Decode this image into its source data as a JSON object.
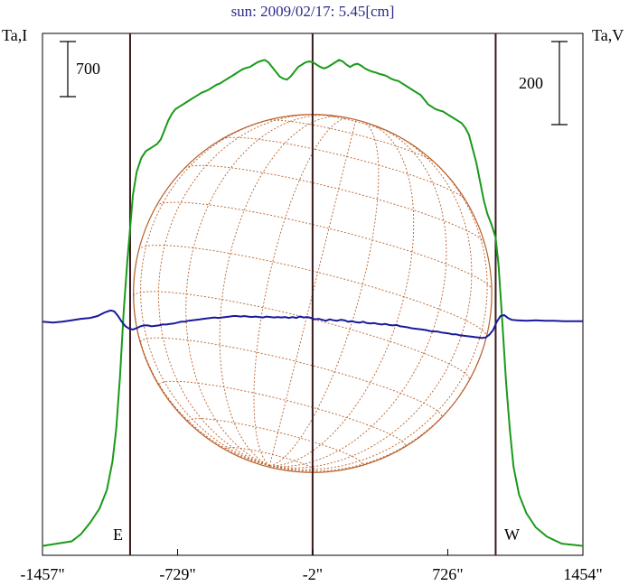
{
  "chart_data": {
    "type": "line",
    "title": "sun: 2009/02/17: 5.45[cm]",
    "left_axis_label": "Ta,I",
    "right_axis_label": "Ta,V",
    "left_scale_bar_label": "700",
    "right_scale_bar_label": "200",
    "east_label": "E",
    "west_label": "W",
    "x_tick_labels": [
      "-1457\"",
      "-729\"",
      "-2\"",
      "726\"",
      "1454\""
    ],
    "x_ticks": [
      -1457,
      -729,
      -2,
      726,
      1454
    ],
    "xlim": [
      -1457,
      1454
    ],
    "solar_limbs": [
      -985,
      984
    ],
    "center_x": -2,
    "disk": {
      "center_x": -2,
      "radius": 965
    },
    "grid": false,
    "series": [
      {
        "color": "#1a9a1a",
        "points": [
          [
            -1457,
            0.02
          ],
          [
            -1380,
            0.025
          ],
          [
            -1300,
            0.03
          ],
          [
            -1250,
            0.045
          ],
          [
            -1200,
            0.07
          ],
          [
            -1150,
            0.1
          ],
          [
            -1110,
            0.14
          ],
          [
            -1080,
            0.2
          ],
          [
            -1060,
            0.27
          ],
          [
            -1040,
            0.38
          ],
          [
            -1020,
            0.52
          ],
          [
            -1000,
            0.63
          ],
          [
            -985,
            0.7
          ],
          [
            -970,
            0.77
          ],
          [
            -950,
            0.82
          ],
          [
            -925,
            0.85
          ],
          [
            -900,
            0.865
          ],
          [
            -880,
            0.87
          ],
          [
            -860,
            0.875
          ],
          [
            -840,
            0.88
          ],
          [
            -820,
            0.89
          ],
          [
            -800,
            0.91
          ],
          [
            -780,
            0.93
          ],
          [
            -760,
            0.945
          ],
          [
            -740,
            0.955
          ],
          [
            -720,
            0.96
          ],
          [
            -700,
            0.965
          ],
          [
            -680,
            0.97
          ],
          [
            -660,
            0.975
          ],
          [
            -640,
            0.98
          ],
          [
            -620,
            0.985
          ],
          [
            -600,
            0.99
          ],
          [
            -580,
            0.993
          ],
          [
            -560,
            0.997
          ],
          [
            -540,
            1.002
          ],
          [
            -520,
            1.007
          ],
          [
            -500,
            1.01
          ],
          [
            -480,
            1.015
          ],
          [
            -460,
            1.02
          ],
          [
            -440,
            1.025
          ],
          [
            -420,
            1.03
          ],
          [
            -400,
            1.035
          ],
          [
            -380,
            1.04
          ],
          [
            -360,
            1.043
          ],
          [
            -340,
            1.045
          ],
          [
            -320,
            1.05
          ],
          [
            -300,
            1.055
          ],
          [
            -280,
            1.058
          ],
          [
            -260,
            1.06
          ],
          [
            -240,
            1.055
          ],
          [
            -220,
            1.045
          ],
          [
            -200,
            1.035
          ],
          [
            -180,
            1.025
          ],
          [
            -160,
            1.02
          ],
          [
            -140,
            1.018
          ],
          [
            -120,
            1.025
          ],
          [
            -100,
            1.035
          ],
          [
            -80,
            1.045
          ],
          [
            -60,
            1.05
          ],
          [
            -40,
            1.055
          ],
          [
            -20,
            1.057
          ],
          [
            0,
            1.055
          ],
          [
            20,
            1.05
          ],
          [
            40,
            1.045
          ],
          [
            60,
            1.042
          ],
          [
            80,
            1.045
          ],
          [
            100,
            1.05
          ],
          [
            120,
            1.055
          ],
          [
            140,
            1.06
          ],
          [
            160,
            1.057
          ],
          [
            180,
            1.05
          ],
          [
            200,
            1.045
          ],
          [
            220,
            1.05
          ],
          [
            240,
            1.052
          ],
          [
            260,
            1.048
          ],
          [
            280,
            1.042
          ],
          [
            300,
            1.038
          ],
          [
            320,
            1.035
          ],
          [
            340,
            1.033
          ],
          [
            360,
            1.03
          ],
          [
            380,
            1.028
          ],
          [
            400,
            1.025
          ],
          [
            420,
            1.02
          ],
          [
            440,
            1.017
          ],
          [
            460,
            1.015
          ],
          [
            480,
            1.01
          ],
          [
            500,
            1.005
          ],
          [
            520,
            1.0
          ],
          [
            540,
            0.995
          ],
          [
            560,
            0.99
          ],
          [
            580,
            0.985
          ],
          [
            600,
            0.975
          ],
          [
            620,
            0.965
          ],
          [
            640,
            0.96
          ],
          [
            660,
            0.955
          ],
          [
            680,
            0.952
          ],
          [
            700,
            0.95
          ],
          [
            720,
            0.945
          ],
          [
            740,
            0.94
          ],
          [
            760,
            0.935
          ],
          [
            780,
            0.93
          ],
          [
            800,
            0.925
          ],
          [
            820,
            0.915
          ],
          [
            840,
            0.9
          ],
          [
            860,
            0.87
          ],
          [
            880,
            0.84
          ],
          [
            900,
            0.8
          ],
          [
            920,
            0.76
          ],
          [
            940,
            0.73
          ],
          [
            960,
            0.71
          ],
          [
            984,
            0.68
          ],
          [
            1000,
            0.62
          ],
          [
            1020,
            0.5
          ],
          [
            1040,
            0.37
          ],
          [
            1060,
            0.27
          ],
          [
            1080,
            0.19
          ],
          [
            1110,
            0.13
          ],
          [
            1150,
            0.09
          ],
          [
            1200,
            0.06
          ],
          [
            1260,
            0.04
          ],
          [
            1340,
            0.025
          ],
          [
            1454,
            0.02
          ]
        ]
      },
      {
        "color": "#1a1a9a",
        "points": [
          [
            -1457,
            0.5
          ],
          [
            -1400,
            0.498
          ],
          [
            -1350,
            0.5
          ],
          [
            -1300,
            0.503
          ],
          [
            -1250,
            0.506
          ],
          [
            -1200,
            0.508
          ],
          [
            -1160,
            0.512
          ],
          [
            -1120,
            0.52
          ],
          [
            -1090,
            0.524
          ],
          [
            -1070,
            0.522
          ],
          [
            -1050,
            0.512
          ],
          [
            -1030,
            0.5
          ],
          [
            -1010,
            0.49
          ],
          [
            -990,
            0.485
          ],
          [
            -970,
            0.483
          ],
          [
            -950,
            0.486
          ],
          [
            -930,
            0.49
          ],
          [
            -910,
            0.492
          ],
          [
            -890,
            0.492
          ],
          [
            -870,
            0.49
          ],
          [
            -850,
            0.491
          ],
          [
            -830,
            0.492
          ],
          [
            -810,
            0.494
          ],
          [
            -790,
            0.494
          ],
          [
            -770,
            0.495
          ],
          [
            -750,
            0.496
          ],
          [
            -730,
            0.498
          ],
          [
            -710,
            0.5
          ],
          [
            -690,
            0.5
          ],
          [
            -670,
            0.502
          ],
          [
            -650,
            0.503
          ],
          [
            -630,
            0.504
          ],
          [
            -610,
            0.505
          ],
          [
            -590,
            0.506
          ],
          [
            -570,
            0.507
          ],
          [
            -550,
            0.508
          ],
          [
            -530,
            0.509
          ],
          [
            -510,
            0.508
          ],
          [
            -490,
            0.509
          ],
          [
            -470,
            0.51
          ],
          [
            -450,
            0.511
          ],
          [
            -430,
            0.512
          ],
          [
            -410,
            0.512
          ],
          [
            -390,
            0.511
          ],
          [
            -370,
            0.512
          ],
          [
            -350,
            0.511
          ],
          [
            -330,
            0.51
          ],
          [
            -310,
            0.511
          ],
          [
            -290,
            0.51
          ],
          [
            -270,
            0.509
          ],
          [
            -250,
            0.511
          ],
          [
            -230,
            0.51
          ],
          [
            -210,
            0.509
          ],
          [
            -190,
            0.51
          ],
          [
            -170,
            0.509
          ],
          [
            -150,
            0.51
          ],
          [
            -130,
            0.508
          ],
          [
            -110,
            0.51
          ],
          [
            -90,
            0.508
          ],
          [
            -70,
            0.511
          ],
          [
            -50,
            0.509
          ],
          [
            -30,
            0.51
          ],
          [
            -10,
            0.508
          ],
          [
            10,
            0.505
          ],
          [
            30,
            0.506
          ],
          [
            50,
            0.504
          ],
          [
            70,
            0.502
          ],
          [
            90,
            0.505
          ],
          [
            110,
            0.503
          ],
          [
            130,
            0.502
          ],
          [
            150,
            0.504
          ],
          [
            170,
            0.503
          ],
          [
            190,
            0.5
          ],
          [
            210,
            0.501
          ],
          [
            230,
            0.499
          ],
          [
            250,
            0.498
          ],
          [
            270,
            0.5
          ],
          [
            290,
            0.497
          ],
          [
            310,
            0.496
          ],
          [
            330,
            0.497
          ],
          [
            350,
            0.495
          ],
          [
            370,
            0.494
          ],
          [
            390,
            0.495
          ],
          [
            410,
            0.493
          ],
          [
            430,
            0.492
          ],
          [
            450,
            0.493
          ],
          [
            470,
            0.49
          ],
          [
            490,
            0.489
          ],
          [
            510,
            0.488
          ],
          [
            530,
            0.486
          ],
          [
            550,
            0.485
          ],
          [
            570,
            0.484
          ],
          [
            590,
            0.483
          ],
          [
            610,
            0.482
          ],
          [
            630,
            0.48
          ],
          [
            650,
            0.479
          ],
          [
            670,
            0.479
          ],
          [
            690,
            0.477
          ],
          [
            710,
            0.476
          ],
          [
            730,
            0.475
          ],
          [
            750,
            0.473
          ],
          [
            770,
            0.473
          ],
          [
            790,
            0.471
          ],
          [
            810,
            0.47
          ],
          [
            830,
            0.469
          ],
          [
            850,
            0.468
          ],
          [
            870,
            0.467
          ],
          [
            890,
            0.466
          ],
          [
            910,
            0.465
          ],
          [
            930,
            0.466
          ],
          [
            950,
            0.472
          ],
          [
            970,
            0.482
          ],
          [
            990,
            0.5
          ],
          [
            1010,
            0.512
          ],
          [
            1030,
            0.514
          ],
          [
            1050,
            0.508
          ],
          [
            1070,
            0.504
          ],
          [
            1100,
            0.503
          ],
          [
            1150,
            0.502
          ],
          [
            1200,
            0.503
          ],
          [
            1250,
            0.502
          ],
          [
            1300,
            0.502
          ],
          [
            1350,
            0.501
          ],
          [
            1400,
            0.501
          ],
          [
            1454,
            0.501
          ]
        ]
      }
    ],
    "colors": {
      "frame": "#000000",
      "limb_lines": "#3a1a1a",
      "disk": "#b8602a",
      "title": "#2b2b8a"
    }
  }
}
